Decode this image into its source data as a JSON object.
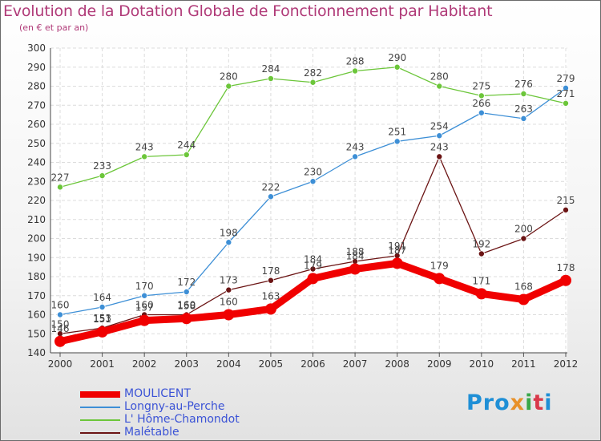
{
  "header": {
    "title": "Evolution de la Dotation Globale de Fonctionnement par Habitant",
    "subtitle": "(en € et par an)"
  },
  "brand": {
    "p1": "Pro",
    "p2": "x",
    "p3": "i",
    "p4": "t",
    "p5": "i"
  },
  "chart_data": {
    "type": "line",
    "title": "Evolution de la Dotation Globale de Fonctionnement par Habitant",
    "ylabel": "(en € et par an)",
    "xlabel": "",
    "ylim": [
      140,
      300
    ],
    "yticks": [
      140,
      150,
      160,
      170,
      180,
      190,
      200,
      210,
      220,
      230,
      240,
      250,
      260,
      270,
      280,
      290,
      300
    ],
    "grid": true,
    "legend_position": "bottom-left",
    "categories": [
      "2000",
      "2001",
      "2002",
      "2003",
      "2004",
      "2005",
      "2006",
      "2007",
      "2008",
      "2009",
      "2010",
      "2011",
      "2012"
    ],
    "series": [
      {
        "name": "MOULICENT",
        "color": "#f00000",
        "values": [
          146,
          151,
          157,
          158,
          160,
          163,
          179,
          184,
          187,
          179,
          171,
          168,
          178
        ]
      },
      {
        "name": "Longny-au-Perche",
        "color": "#3d8fd6",
        "values": [
          160,
          164,
          170,
          172,
          198,
          222,
          230,
          243,
          251,
          254,
          266,
          263,
          279
        ]
      },
      {
        "name": "L' Hôme-Chamondot",
        "color": "#6cc63a",
        "values": [
          227,
          233,
          243,
          244,
          280,
          284,
          282,
          288,
          290,
          280,
          275,
          276,
          271
        ]
      },
      {
        "name": "Malétable",
        "color": "#6b1414",
        "values": [
          150,
          153,
          160,
          160,
          173,
          178,
          184,
          188,
          191,
          243,
          192,
          200,
          215
        ]
      }
    ]
  }
}
